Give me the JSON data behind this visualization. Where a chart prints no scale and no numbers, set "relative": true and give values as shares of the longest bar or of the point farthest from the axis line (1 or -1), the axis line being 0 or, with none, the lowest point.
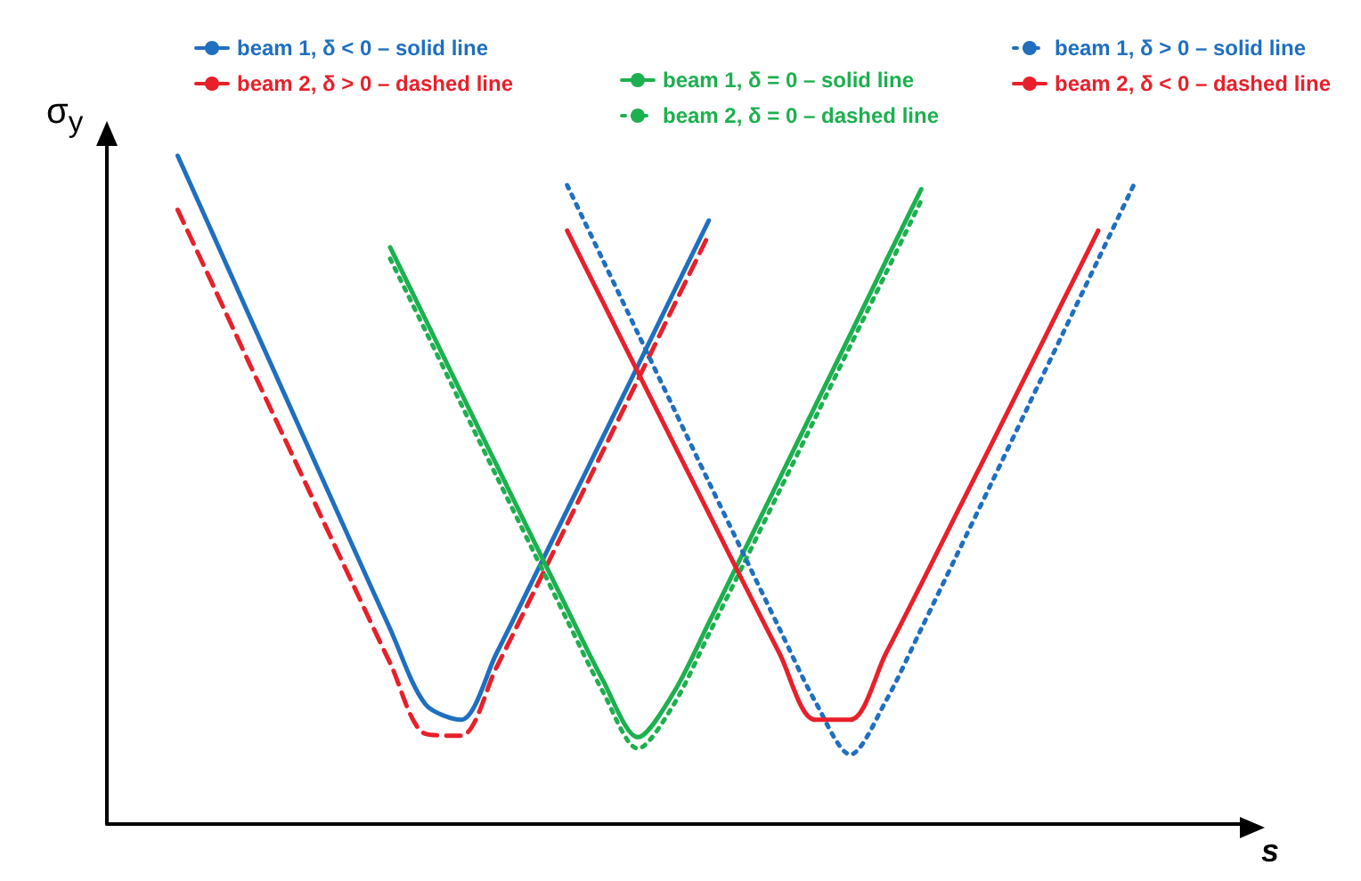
{
  "chart_data": {
    "type": "line",
    "relative": true,
    "xlabel": "s",
    "ylabel": "σ$_{y}$",
    "legend": "top",
    "grid": false,
    "marker": "none",
    "categories": [
      null,
      null,
      null,
      null,
      null,
      null,
      null,
      null,
      null,
      null,
      null,
      null,
      null,
      null,
      null,
      null,
      null,
      null,
      null,
      null,
      null,
      null,
      null,
      null,
      null,
      null,
      null,
      null,
      null,
      null,
      null,
      null,
      null
    ],
    "series": [
      {
        "name": "beam 1, δ < 0 – solid line",
        "color": "#1f6fc0",
        "line_style": "solid",
        "values": [
          null,
          null,
          1,
          0.882,
          0.763,
          0.645,
          0.527,
          0.409,
          0.292,
          0.179,
          0.156,
          0.255,
          0.362,
          0.47,
          0.578,
          0.686,
          0.795,
          0.903,
          null,
          null,
          null,
          null,
          null,
          null,
          null,
          null,
          null,
          null,
          null,
          null,
          null,
          null,
          null
        ]
      },
      {
        "name": "beam 2, δ > 0 – dashed line",
        "color": "#e8202a",
        "line_style": "dashed",
        "values": [
          null,
          null,
          0.919,
          0.806,
          0.692,
          0.579,
          0.466,
          0.353,
          0.241,
          0.135,
          0.132,
          0.234,
          0.341,
          0.449,
          0.557,
          0.665,
          0.774,
          0.882,
          null,
          null,
          null,
          null,
          null,
          null,
          null,
          null,
          null,
          null,
          null,
          null,
          null,
          null,
          null
        ]
      },
      {
        "name": "beam 1, δ = 0 – solid line",
        "color": "#1db04f",
        "line_style": "solid",
        "values": [
          null,
          null,
          null,
          null,
          null,
          null,
          null,
          null,
          0.863,
          0.755,
          0.646,
          0.538,
          0.43,
          0.322,
          0.216,
          0.13,
          0.196,
          0.301,
          0.409,
          0.517,
          0.625,
          0.733,
          0.842,
          0.95,
          null,
          null,
          null,
          null,
          null,
          null,
          null,
          null,
          null
        ]
      },
      {
        "name": "beam 2, δ = 0 – dashed line",
        "color": "#1db04f",
        "line_style": "dotted",
        "values": [
          null,
          null,
          null,
          null,
          null,
          null,
          null,
          null,
          0.846,
          0.738,
          0.629,
          0.521,
          0.413,
          0.305,
          0.199,
          0.113,
          0.178,
          0.284,
          0.391,
          0.499,
          0.607,
          0.716,
          0.824,
          0.933,
          null,
          null,
          null,
          null,
          null,
          null,
          null,
          null,
          null
        ]
      },
      {
        "name": "beam 1, δ > 0 – solid line",
        "color": "#1f6fc0",
        "line_style": "dotted",
        "values": [
          null,
          null,
          null,
          null,
          null,
          null,
          null,
          null,
          null,
          null,
          null,
          null,
          null,
          0.956,
          0.845,
          0.734,
          0.623,
          0.512,
          0.402,
          0.292,
          0.184,
          0.104,
          0.184,
          0.292,
          0.402,
          0.512,
          0.623,
          0.734,
          0.845,
          0.956,
          null,
          null,
          null
        ]
      },
      {
        "name": "beam 2, δ < 0 – dashed line",
        "color": "#e8202a",
        "line_style": "solid",
        "values": [
          null,
          null,
          null,
          null,
          null,
          null,
          null,
          null,
          null,
          null,
          null,
          null,
          null,
          0.888,
          0.782,
          0.676,
          0.57,
          0.465,
          0.359,
          0.255,
          0.156,
          0.156,
          0.255,
          0.359,
          0.465,
          0.57,
          0.676,
          0.782,
          0.888,
          null,
          null,
          null,
          null
        ]
      }
    ]
  }
}
